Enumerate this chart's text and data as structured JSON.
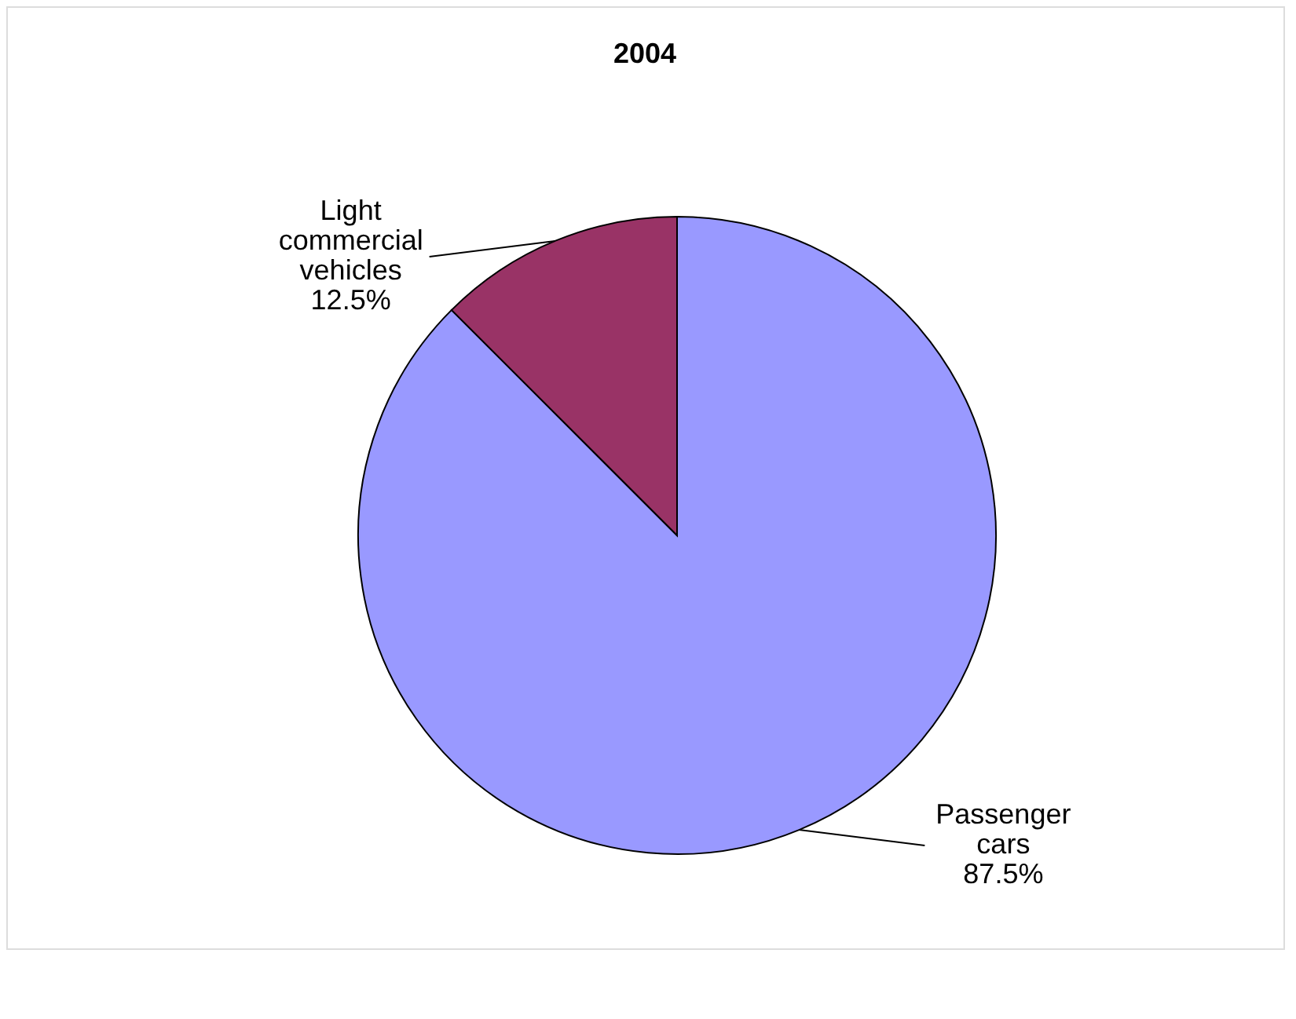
{
  "chart_data": {
    "type": "pie",
    "title": "2004",
    "categories": [
      "Passenger cars",
      "Light commercial vehicles"
    ],
    "values": [
      87.5,
      12.5
    ],
    "colors": [
      "#9999ff",
      "#993366"
    ],
    "value_labels": [
      "87.5%",
      "12.5%"
    ],
    "legend": false
  }
}
